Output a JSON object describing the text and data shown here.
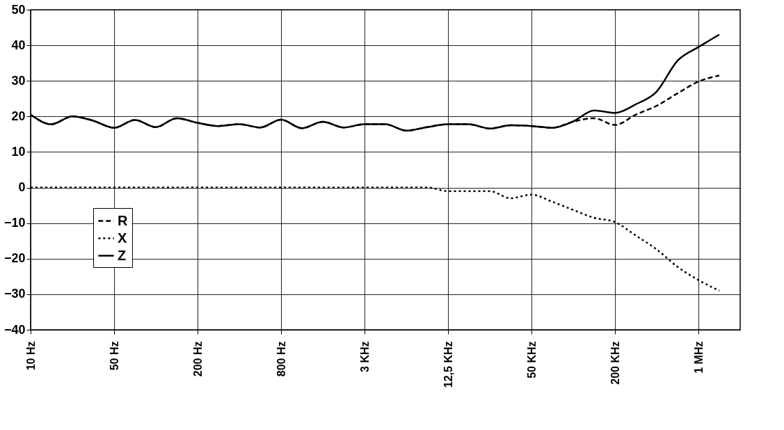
{
  "chart_data": {
    "type": "line",
    "categories": [
      "10 Hz",
      null,
      null,
      null,
      "50 Hz",
      null,
      null,
      null,
      "200 Hz",
      null,
      null,
      null,
      "800 Hz",
      null,
      null,
      null,
      "3 KHz",
      null,
      null,
      null,
      "12,5 KHz",
      null,
      null,
      null,
      "50 KHz",
      null,
      null,
      null,
      "200 KHz",
      null,
      null,
      null,
      "1 MHz",
      null,
      null
    ],
    "series": [
      {
        "name": "R",
        "color": "#000000",
        "line_style": "dashed",
        "values": [
          20.5,
          17.8,
          20,
          18.8,
          16.8,
          19,
          17,
          19.5,
          18.2,
          17.3,
          17.8,
          16.9,
          19.1,
          16.7,
          18.5,
          16.9,
          17.8,
          17.8,
          16,
          17,
          17.8,
          17.8,
          16.6,
          17.5,
          17.3,
          16.8,
          18.5,
          19.5,
          17.6,
          20.5,
          23,
          26.5,
          29.8,
          31.5,
          null
        ]
      },
      {
        "name": "X",
        "color": "#000000",
        "line_style": "dotted",
        "values": [
          0,
          0,
          0,
          0,
          0,
          0,
          0,
          0,
          0,
          0,
          0,
          0,
          0,
          0,
          0,
          0,
          0,
          0,
          0,
          0,
          -1,
          -1,
          -1,
          -3,
          -2,
          -4,
          -6.3,
          -8.5,
          -9.7,
          -13.5,
          -17.4,
          -22.3,
          -26,
          -29,
          null
        ]
      },
      {
        "name": "Z",
        "color": "#000000",
        "line_style": "solid",
        "values": [
          20.5,
          17.8,
          20,
          18.8,
          16.8,
          19,
          17,
          19.5,
          18.2,
          17.3,
          17.8,
          16.9,
          19.1,
          16.7,
          18.5,
          16.9,
          17.8,
          17.8,
          16,
          17,
          17.8,
          17.8,
          16.6,
          17.5,
          17.3,
          16.8,
          18.6,
          21.7,
          21,
          23.4,
          27,
          35.7,
          39.5,
          43,
          null
        ]
      }
    ],
    "ylim": [
      -40,
      50
    ],
    "yticks": [
      -40,
      -30,
      -20,
      -10,
      0,
      10,
      20,
      30,
      40,
      50
    ],
    "grid": true,
    "legend": "bottom left"
  }
}
